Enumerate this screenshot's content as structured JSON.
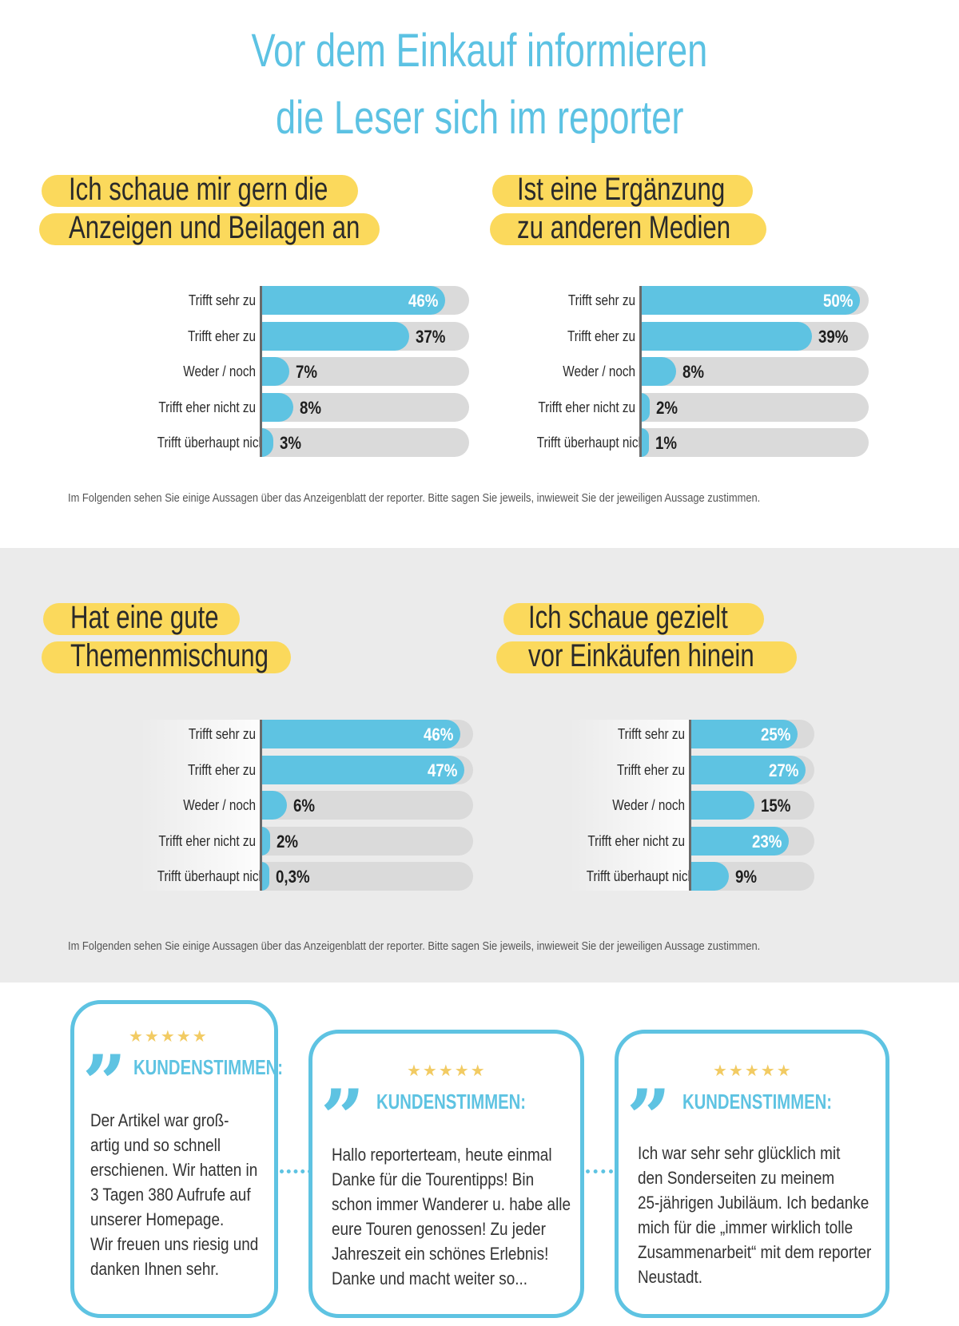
{
  "title": [
    "Vor dem Einkauf informieren",
    "die Leser sich im reporter"
  ],
  "footnote": "Im Folgenden sehen Sie einige Aussagen über das Anzeigenblatt der reporter. Bitte sagen Sie jeweils, inwieweit Sie der jeweiligen Aussage zustimmen.",
  "chart_data": [
    {
      "type": "bar",
      "title": [
        "Ich schaue mir gern die",
        "Anzeigen und Beilagen an"
      ],
      "categories": [
        "Trifft sehr zu",
        "Trifft eher zu",
        "Weder / noch",
        "Trifft eher nicht zu",
        "Trifft überhaupt nicht zu"
      ],
      "values": [
        46,
        37,
        7,
        8,
        3
      ],
      "labels": [
        "46%",
        "37%",
        "7%",
        "8%",
        "3%"
      ],
      "xlim": [
        0,
        52
      ]
    },
    {
      "type": "bar",
      "title": [
        "Ist eine Ergänzung",
        "zu anderen Medien"
      ],
      "categories": [
        "Trifft sehr zu",
        "Trifft eher zu",
        "Weder / noch",
        "Trifft eher nicht zu",
        "Trifft überhaupt nicht zu"
      ],
      "values": [
        50,
        39,
        8,
        2,
        1
      ],
      "labels": [
        "50%",
        "39%",
        "8%",
        "2%",
        "1%"
      ],
      "xlim": [
        0,
        52
      ]
    },
    {
      "type": "bar",
      "title": [
        "Hat eine gute",
        "Themenmischung"
      ],
      "categories": [
        "Trifft sehr zu",
        "Trifft eher zu",
        "Weder / noch",
        "Trifft eher nicht zu",
        "Trifft überhaupt nicht zu"
      ],
      "values": [
        46,
        47,
        6,
        2,
        0.3
      ],
      "labels": [
        "46%",
        "47%",
        "6%",
        "2%",
        "0,3%"
      ],
      "xlim": [
        0,
        49
      ]
    },
    {
      "type": "bar",
      "title": [
        "Ich schaue gezielt",
        "vor Einkäufen hinein"
      ],
      "categories": [
        "Trifft sehr zu",
        "Trifft eher zu",
        "Weder / noch",
        "Trifft eher nicht zu",
        "Trifft überhaupt nicht zu"
      ],
      "values": [
        25,
        27,
        15,
        23,
        9
      ],
      "labels": [
        "25%",
        "27%",
        "15%",
        "23%",
        "9%"
      ],
      "xlim": [
        0,
        29
      ]
    }
  ],
  "testimonials": [
    {
      "stars": "★★★★★",
      "heading": "KUNDENSTIMMEN:",
      "text": "Der Artikel war groß-\nartig und so schnell\nerschienen. Wir hatten in\n3 Tagen 380 Aufrufe auf\nunserer Homepage.\nWir freuen uns riesig und\ndanken Ihnen sehr."
    },
    {
      "stars": "★★★★★",
      "heading": "KUNDENSTIMMEN:",
      "text": "Hallo reporterteam, heute einmal\nDanke für die Tourentipps! Bin\nschon immer Wanderer u. habe alle\neure Touren genossen! Zu jeder\nJahreszeit ein schönes Erlebnis!\nDanke und macht weiter so..."
    },
    {
      "stars": "★★★★★",
      "heading": "KUNDENSTIMMEN:",
      "text": "Ich war sehr sehr glücklich mit\nden Sonderseiten zu meinem\n25-jährigen Jubiläum. Ich bedanke\nmich für die „immer wirklich tolle\nZusammenarbeit“ mit dem reporter\nNeustadt."
    }
  ],
  "colors": {
    "accent": "#5ec3e2",
    "highlight": "#fbd95c",
    "track": "#dadada",
    "stars": "#f2cb63"
  }
}
